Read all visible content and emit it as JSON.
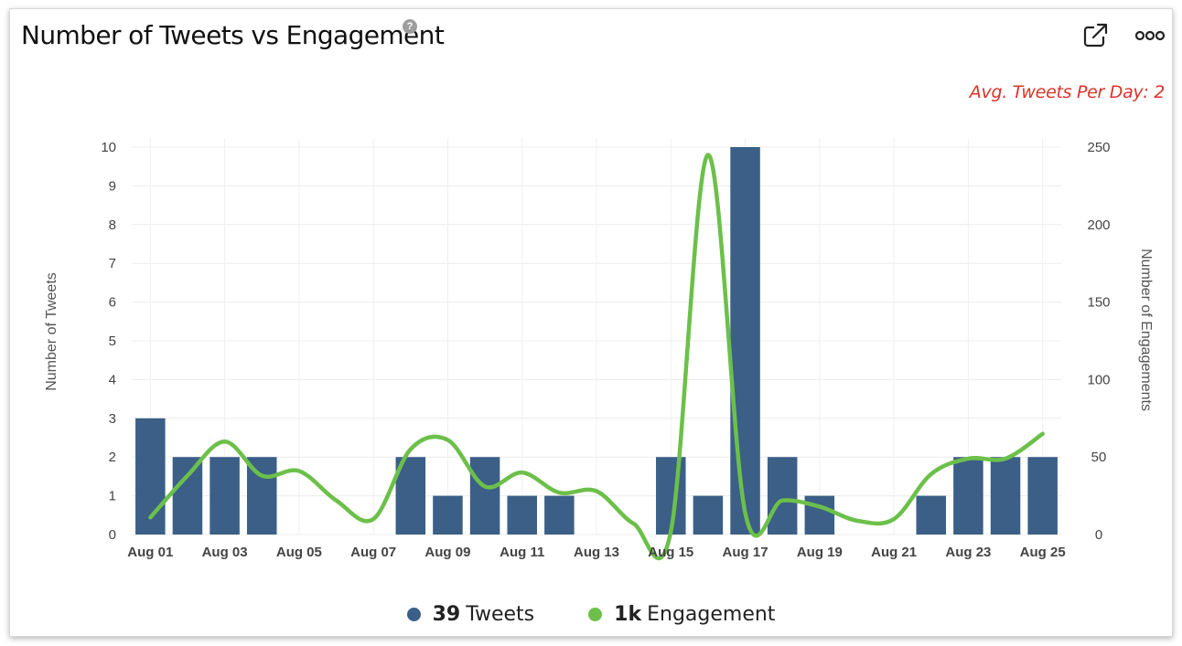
{
  "header": {
    "title": "Number of Tweets vs Engagement",
    "help_glyph": "?",
    "avg_text": "Avg. Tweets Per Day: 2"
  },
  "icons": {
    "export": "external-link-icon",
    "more": "more-options-icon",
    "help": "help-icon"
  },
  "colors": {
    "tweets": "#3b5f87",
    "engagement": "#6cc04a",
    "avg_text": "#d9342b"
  },
  "legend": {
    "tweets": {
      "value": "39",
      "label": "Tweets"
    },
    "engagement": {
      "value": "1k",
      "label": "Engagement"
    }
  },
  "chart_data": {
    "type": "bar+line",
    "title": "Number of Tweets vs Engagement",
    "categories": [
      "Aug 01",
      "Aug 02",
      "Aug 03",
      "Aug 04",
      "Aug 05",
      "Aug 06",
      "Aug 07",
      "Aug 08",
      "Aug 09",
      "Aug 10",
      "Aug 11",
      "Aug 12",
      "Aug 13",
      "Aug 14",
      "Aug 15",
      "Aug 16",
      "Aug 17",
      "Aug 18",
      "Aug 19",
      "Aug 20",
      "Aug 21",
      "Aug 22",
      "Aug 23",
      "Aug 24",
      "Aug 25"
    ],
    "x_tick_labels": [
      "Aug 01",
      "Aug 03",
      "Aug 05",
      "Aug 07",
      "Aug 09",
      "Aug 11",
      "Aug 13",
      "Aug 15",
      "Aug 17",
      "Aug 19",
      "Aug 21",
      "Aug 23",
      "Aug 25"
    ],
    "series": [
      {
        "name": "Tweets",
        "type": "bar",
        "axis": "left",
        "values": [
          3,
          2,
          2,
          2,
          0,
          0,
          0,
          2,
          1,
          2,
          1,
          1,
          0,
          0,
          2,
          1,
          10,
          2,
          1,
          0,
          0,
          1,
          2,
          2,
          2
        ]
      },
      {
        "name": "Engagement",
        "type": "line",
        "axis": "right",
        "values": [
          11,
          38,
          60,
          38,
          41,
          22,
          10,
          55,
          61,
          31,
          40,
          27,
          28,
          7,
          2,
          245,
          14,
          22,
          18,
          9,
          10,
          39,
          49,
          49,
          65
        ]
      }
    ],
    "ylabel_left": "Number of Tweets",
    "ylabel_right": "Number of Engagements",
    "ylim_left": [
      0,
      10
    ],
    "yticks_left": [
      "0",
      "1",
      "2",
      "3",
      "4",
      "5",
      "6",
      "7",
      "8",
      "9",
      "10"
    ],
    "ylim_right": [
      0,
      250
    ],
    "yticks_right": [
      "0",
      "50",
      "100",
      "150",
      "200",
      "250"
    ],
    "grid": true,
    "legend_position": "bottom"
  }
}
